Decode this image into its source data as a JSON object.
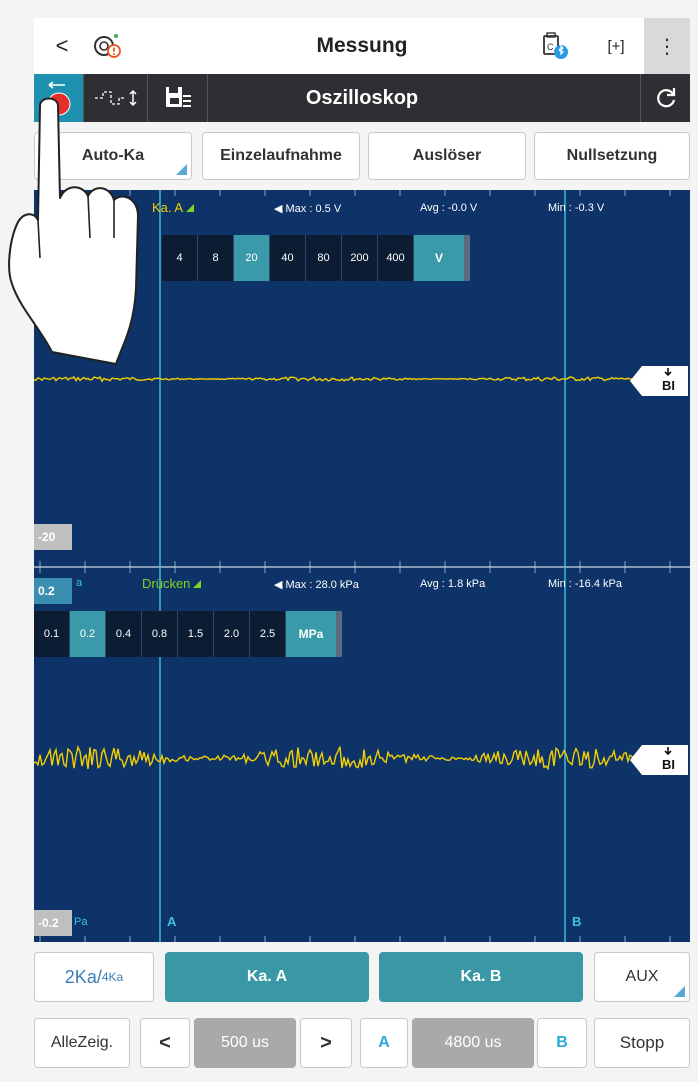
{
  "topbar": {
    "back_glyph": "<",
    "title": "Messung",
    "fit_glyph": "[+]",
    "menu_glyph": "⋮",
    "icons": [
      "back-icon",
      "vehicle-diagnostic-icon",
      "vci-bluetooth-icon",
      "fullscreen-icon",
      "more-menu-icon"
    ]
  },
  "modebar": {
    "title": "Oszilloskop",
    "icons": [
      "record-icon",
      "trigger-mode-icon",
      "save-list-icon",
      "refresh-icon"
    ]
  },
  "controls": {
    "auto_channel": "Auto-Ka",
    "single_shot": "Einzelaufnahme",
    "trigger": "Auslöser",
    "zero": "Nullsetzung"
  },
  "channel_a": {
    "name": "Ka. A",
    "max": "Max : 0.5 V",
    "avg": "Avg : -0.0 V",
    "min": "Min : -0.3 V",
    "scale_options": [
      "4",
      "8",
      "20",
      "40",
      "80",
      "200",
      "400"
    ],
    "selected_scale": "20",
    "unit": "V",
    "y_bottom_label": "-20",
    "marker_label": "BI"
  },
  "channel_b": {
    "name": "Drücken",
    "max": "Max : 28.0 kPa",
    "avg": "Avg : 1.8 kPa",
    "min": "Min : -16.4 kPa",
    "y_top_label": "0.2",
    "y_top_unit_fragment": "a",
    "scale_options": [
      "0.1",
      "0.2",
      "0.4",
      "0.8",
      "1.5",
      "2.0",
      "2.5"
    ],
    "selected_scale": "0.2",
    "unit": "MPa",
    "y_bottom_label": "-0.2",
    "y_bottom_unit_fragment": "Pa",
    "marker_label": "BI"
  },
  "cursors": {
    "a_label": "A",
    "b_label": "B"
  },
  "bottom_row1": {
    "channels_main": "2Ka/",
    "channels_sub": "4Ka",
    "ch_a": "Ka. A",
    "ch_b": "Ka. B",
    "aux": "AUX"
  },
  "bottom_row2": {
    "show_all": "AlleZeig.",
    "prev_glyph": "<",
    "timebase": "500 us",
    "next_glyph": ">",
    "cursor_a": "A",
    "cursor_delta": "4800 us",
    "cursor_b": "B",
    "stop": "Stopp"
  },
  "colors": {
    "scope_bg": "#0d3368",
    "trace": "#f4d000",
    "cursor": "#3fc3e0",
    "accent_teal": "#3a98a6",
    "toolbar_dark": "#2f2f33"
  }
}
